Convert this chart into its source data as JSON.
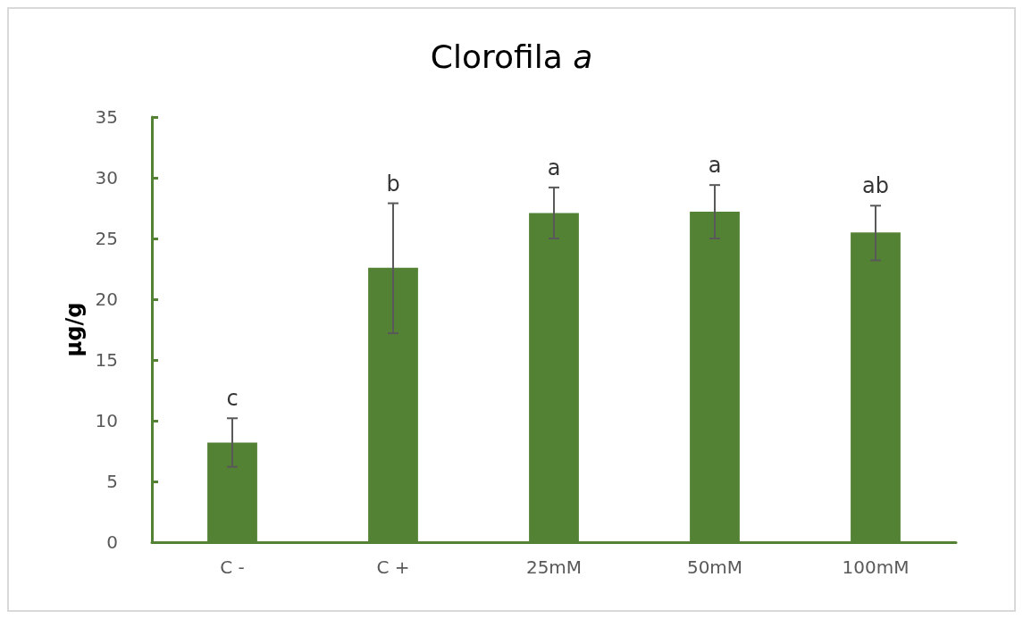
{
  "chart_data": {
    "type": "bar",
    "title": "Clorofila a",
    "ylabel": "µg/g",
    "categories": [
      "C -",
      "C +",
      "25mM",
      "50mM",
      "100mM"
    ],
    "values": [
      8.2,
      22.6,
      27.1,
      27.2,
      25.5
    ],
    "color": "#548235",
    "errors": [
      [
        6.2,
        10.2
      ],
      [
        17.2,
        27.9
      ],
      [
        25.0,
        29.2
      ],
      [
        25.0,
        29.4
      ],
      [
        23.2,
        27.7
      ]
    ],
    "ylim": [
      0,
      35
    ],
    "yticks": [
      0,
      5,
      10,
      15,
      20,
      25,
      30,
      35
    ],
    "grid": false,
    "annotations": [
      "c",
      "b",
      "a",
      "a",
      "ab"
    ]
  }
}
